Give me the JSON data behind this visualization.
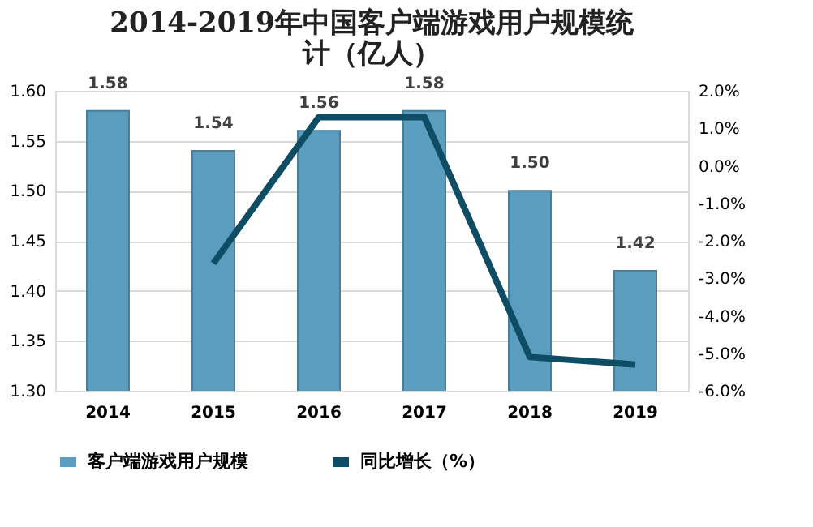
{
  "chart_data": {
    "type": "bar",
    "title": "2014-2019年中国客户端游戏用户规模统计（亿人）",
    "categories": [
      "2014",
      "2015",
      "2016",
      "2017",
      "2018",
      "2019"
    ],
    "series": [
      {
        "name": "客户端游戏用户规模",
        "color": "#5b9dbf",
        "values": [
          1.58,
          1.54,
          1.56,
          1.58,
          1.5,
          1.42
        ],
        "value_labels": [
          "1.58",
          "1.54",
          "1.56",
          "1.58",
          "1.50",
          "1.42"
        ]
      },
      {
        "name": "同比增长（%）",
        "type": "line",
        "axis": "y2",
        "color": "#0e4d64",
        "values": [
          null,
          -2.6,
          1.3,
          1.3,
          -5.1,
          -5.3
        ]
      }
    ],
    "ylim": [
      1.3,
      1.6
    ],
    "yticks": [
      {
        "value": 1.3,
        "label": "1.30"
      },
      1.35,
      {
        "value": 1.4,
        "label": "1.40"
      },
      1.45,
      {
        "value": 1.5,
        "label": "1.50"
      },
      1.55,
      {
        "value": 1.6,
        "label": "1.60"
      }
    ],
    "y2lim": [
      -6.0,
      2.0
    ],
    "y2ticks": [
      {
        "value": -6,
        "label": "-6.0%"
      },
      {
        "value": -5,
        "label": "-5.0%"
      },
      {
        "value": -4,
        "label": "-4.0%"
      },
      {
        "value": -3,
        "label": "-3.0%"
      },
      {
        "value": -2,
        "label": "-2.0%"
      },
      {
        "value": -1,
        "label": "-1.0%"
      },
      {
        "value": 0,
        "label": "0.0%"
      },
      {
        "value": 1,
        "label": "1.0%"
      },
      {
        "value": 2,
        "label": "2.0%"
      }
    ],
    "grid": "y",
    "legend": "bottom",
    "marker": "none",
    "line_style": "solid"
  }
}
